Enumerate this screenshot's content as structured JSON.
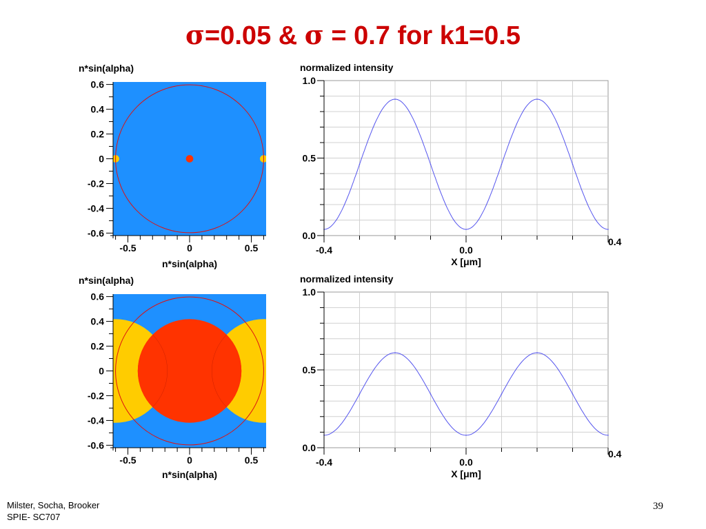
{
  "slide": {
    "title_sym_1": "σ",
    "title_mid": "=0.05 & ",
    "title_sym_2": "σ",
    "title_end": " = 0.7 for k1=0.5",
    "footer_line1": "Milster, Socha, Brooker",
    "footer_line2": "SPIE- SC707",
    "page_number": "39"
  },
  "colors": {
    "pupil_background": "#1e90ff",
    "pupil_circle": "#dd1111",
    "central_order": "#ff3300",
    "side_orders": "#ffcc00",
    "intensity_line": "#5555ee"
  },
  "chart_data": [
    {
      "type": "heatmap",
      "title": "n*sin(alpha)",
      "xlabel": "n*sin(alpha)",
      "xlim": [
        -0.62,
        0.62
      ],
      "ylim": [
        -0.62,
        0.62
      ],
      "xticks": [
        "-0.5",
        "0",
        "0.5"
      ],
      "yticks": [
        "0.6",
        "0.4",
        "0.2",
        "0",
        "-0.2",
        "-0.4",
        "-0.6"
      ],
      "pupil_radius": 0.6,
      "sigma": 0.05,
      "source_disks": [
        {
          "center": 0,
          "radius": 0.03,
          "order": 0
        },
        {
          "center": -0.6,
          "radius": 0.03,
          "order": -1
        },
        {
          "center": 0.6,
          "radius": 0.03,
          "order": 1
        }
      ]
    },
    {
      "type": "line",
      "title": "normalized intensity",
      "xlabel": "X [μm]",
      "xlim": [
        -0.4,
        0.4
      ],
      "ylim": [
        0,
        1
      ],
      "xticks": [
        "-0.4",
        "0.0",
        "0.4"
      ],
      "yticks": [
        "1.0",
        "0.5",
        "0.0"
      ],
      "period_um": 0.4,
      "series": [
        {
          "x": [
            -0.4,
            -0.3,
            -0.2,
            -0.1,
            0,
            0.1,
            0.2,
            0.3,
            0.4
          ],
          "values": [
            0.04,
            0.46,
            0.88,
            0.46,
            0.04,
            0.46,
            0.88,
            0.46,
            0.04
          ]
        }
      ]
    },
    {
      "type": "heatmap",
      "title": "n*sin(alpha)",
      "xlabel": "n*sin(alpha)",
      "xlim": [
        -0.62,
        0.62
      ],
      "ylim": [
        -0.62,
        0.62
      ],
      "xticks": [
        "-0.5",
        "0",
        "0.5"
      ],
      "yticks": [
        "0.6",
        "0.4",
        "0.2",
        "0",
        "-0.2",
        "-0.4",
        "-0.6"
      ],
      "pupil_radius": 0.6,
      "sigma": 0.7,
      "source_disks": [
        {
          "center": 0,
          "radius": 0.42,
          "order": 0
        },
        {
          "center": -0.6,
          "radius": 0.42,
          "order": -1
        },
        {
          "center": 0.6,
          "radius": 0.42,
          "order": 1
        }
      ]
    },
    {
      "type": "line",
      "title": "normalized intensity",
      "xlabel": "X [μm]",
      "xlim": [
        -0.4,
        0.4
      ],
      "ylim": [
        0,
        1
      ],
      "xticks": [
        "-0.4",
        "0.0",
        "0.4"
      ],
      "yticks": [
        "1.0",
        "0.5",
        "0.0"
      ],
      "period_um": 0.4,
      "series": [
        {
          "x": [
            -0.4,
            -0.3,
            -0.2,
            -0.1,
            0,
            0.1,
            0.2,
            0.3,
            0.4
          ],
          "values": [
            0.08,
            0.345,
            0.61,
            0.345,
            0.08,
            0.345,
            0.61,
            0.345,
            0.08
          ]
        }
      ]
    }
  ]
}
